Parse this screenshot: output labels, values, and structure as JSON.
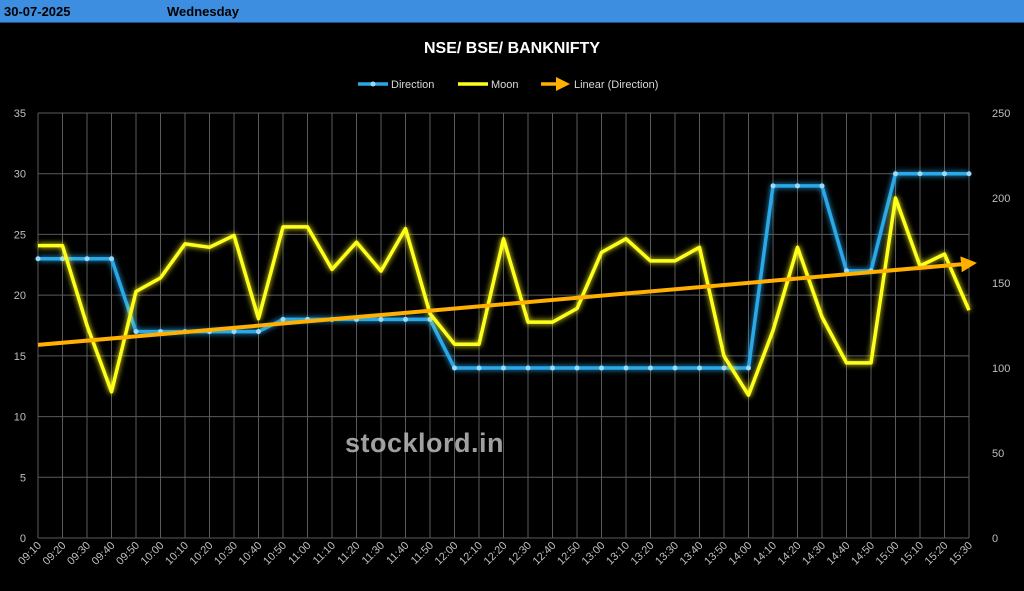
{
  "header": {
    "date": "30-07-2025",
    "day": "Wednesday"
  },
  "watermark": "stocklord.in",
  "chart_data": {
    "type": "line",
    "title": "NSE/ BSE/ BANKNIFTY",
    "categories": [
      "09:10",
      "09:20",
      "09:30",
      "09:40",
      "09:50",
      "10:00",
      "10:10",
      "10:20",
      "10:30",
      "10:40",
      "10:50",
      "11:00",
      "11:10",
      "11:20",
      "11:30",
      "11:40",
      "11:50",
      "12:00",
      "12:10",
      "12:20",
      "12:30",
      "12:40",
      "12:50",
      "13:00",
      "13:10",
      "13:20",
      "13:30",
      "13:40",
      "13:50",
      "14:00",
      "14:10",
      "14:20",
      "14:30",
      "14:40",
      "14:50",
      "15:00",
      "15:10",
      "15:20",
      "15:30"
    ],
    "y_left": {
      "min": 0,
      "max": 35,
      "ticks": [
        0,
        5,
        10,
        15,
        20,
        25,
        30,
        35
      ]
    },
    "y_right": {
      "min": 0,
      "max": 250,
      "ticks": [
        0,
        50,
        100,
        150,
        200,
        250
      ]
    },
    "grid": true,
    "legend_position": "top-center",
    "series": [
      {
        "name": "Direction",
        "axis": "left",
        "color": "#29a8e8",
        "values": [
          23,
          23,
          23,
          23,
          17,
          17,
          17,
          17,
          17,
          17,
          18,
          18,
          18,
          18,
          18,
          18,
          18,
          14,
          14,
          14,
          14,
          14,
          14,
          14,
          14,
          14,
          14,
          14,
          14,
          14,
          29,
          29,
          29,
          22,
          22,
          30,
          30,
          30,
          30
        ]
      },
      {
        "name": "Moon",
        "axis": "right",
        "color": "#ffff1a",
        "values": [
          172,
          172,
          125,
          86,
          145,
          153,
          173,
          171,
          178,
          129,
          183,
          183,
          158,
          174,
          157,
          182,
          132,
          114,
          114,
          176,
          127,
          127,
          135,
          168,
          176,
          163,
          163,
          171,
          107,
          84,
          122,
          171,
          130,
          103,
          103,
          200,
          160,
          167,
          134
        ]
      },
      {
        "name": "Linear (Direction)",
        "axis": "left",
        "color": "#ffb000",
        "trend": [
          15.9,
          22.6
        ]
      }
    ]
  }
}
